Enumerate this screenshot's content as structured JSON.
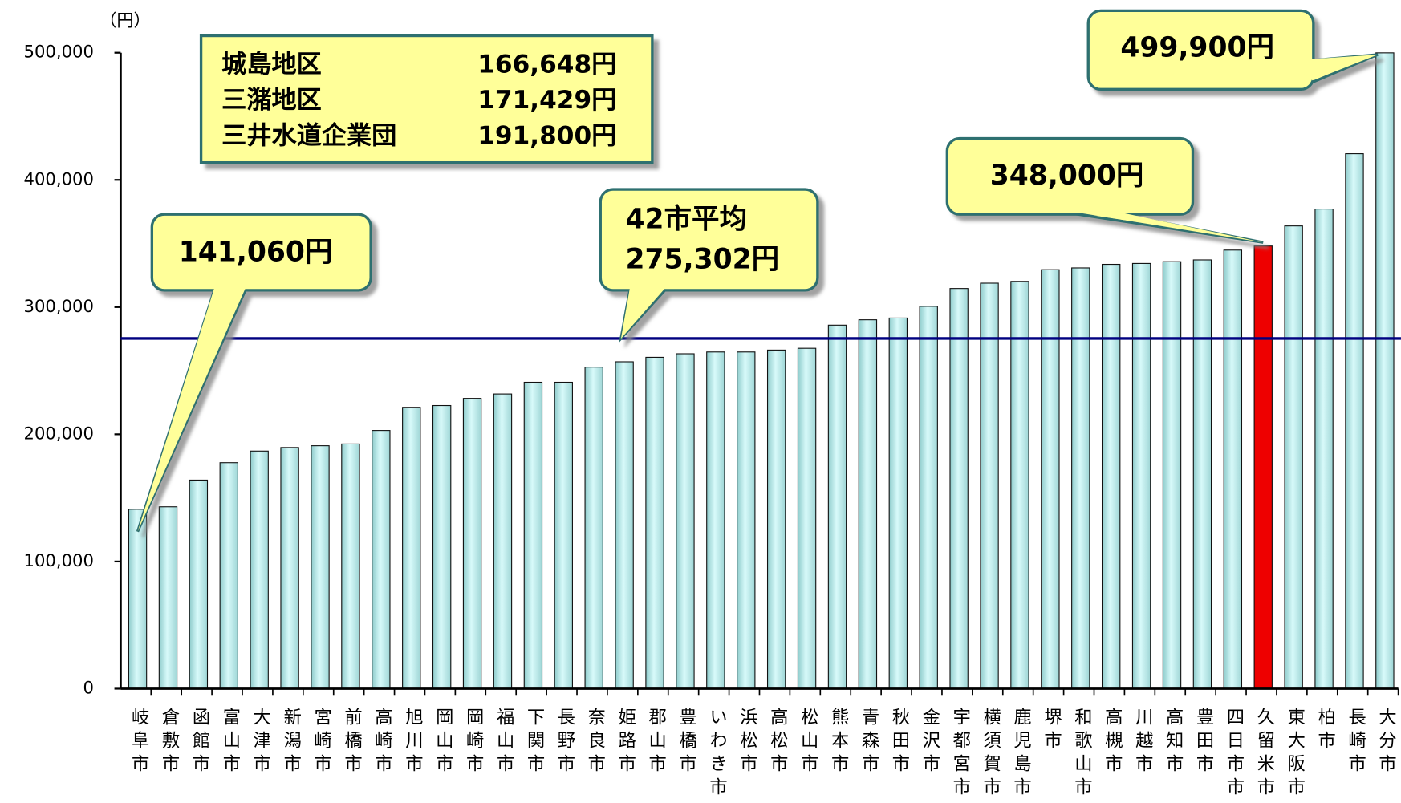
{
  "chart_data": {
    "type": "bar",
    "y_unit": "（円）",
    "categories": [
      "岐阜市",
      "倉敷市",
      "函館市",
      "富山市",
      "大津市",
      "新潟市",
      "宮崎市",
      "前橋市",
      "高崎市",
      "旭川市",
      "岡山市",
      "岡崎市",
      "福山市",
      "下関市",
      "長野市",
      "奈良市",
      "姫路市",
      "郡山市",
      "豊橋市",
      "いわき市",
      "浜松市",
      "高松市",
      "松山市",
      "熊本市",
      "青森市",
      "秋田市",
      "金沢市",
      "宇都宮市",
      "横須賀市",
      "鹿児島市",
      "堺市",
      "和歌山市",
      "高槻市",
      "川越市",
      "高知市",
      "豊田市",
      "四日市市",
      "久留米市",
      "東大阪市",
      "柏市",
      "長崎市",
      "大分市"
    ],
    "values": [
      141060,
      143000,
      164000,
      177700,
      186800,
      189600,
      191000,
      192400,
      203000,
      221200,
      222600,
      228200,
      231700,
      240900,
      240900,
      252800,
      257000,
      260500,
      263300,
      264700,
      264700,
      266200,
      267600,
      285800,
      290000,
      291400,
      300600,
      314600,
      318800,
      320200,
      329400,
      330800,
      333600,
      334300,
      335700,
      337100,
      344800,
      348000,
      363800,
      377100,
      420600,
      499900
    ],
    "value_labels": [
      "141,060円",
      null,
      null,
      null,
      null,
      null,
      null,
      null,
      null,
      null,
      null,
      null,
      null,
      null,
      null,
      null,
      null,
      null,
      null,
      null,
      null,
      null,
      null,
      null,
      null,
      null,
      null,
      null,
      null,
      null,
      null,
      null,
      null,
      null,
      null,
      null,
      null,
      "348,000円",
      null,
      null,
      null,
      "499,900円"
    ],
    "color": "#bdeeee",
    "highlight": "久留米市",
    "highlight_color": "#ee0000",
    "average": {
      "label": "42市平均",
      "value": 275302,
      "value_label": "275,302円",
      "color": "#000080"
    },
    "info_box": [
      {
        "name": "城島地区",
        "value_label": "166,648円"
      },
      {
        "name": "三潴地区",
        "value_label": "171,429円"
      },
      {
        "name": "三井水道企業団",
        "value_label": "191,800円"
      }
    ],
    "ylim": [
      0,
      500000
    ],
    "yticks": [
      0,
      {
        "value": 100000,
        "label": "100,000"
      },
      {
        "value": 200000,
        "label": "200,000"
      },
      {
        "value": 300000,
        "label": "300,000"
      },
      {
        "value": 400000,
        "label": "400,000"
      },
      {
        "value": 500000,
        "label": "500,000"
      }
    ]
  }
}
